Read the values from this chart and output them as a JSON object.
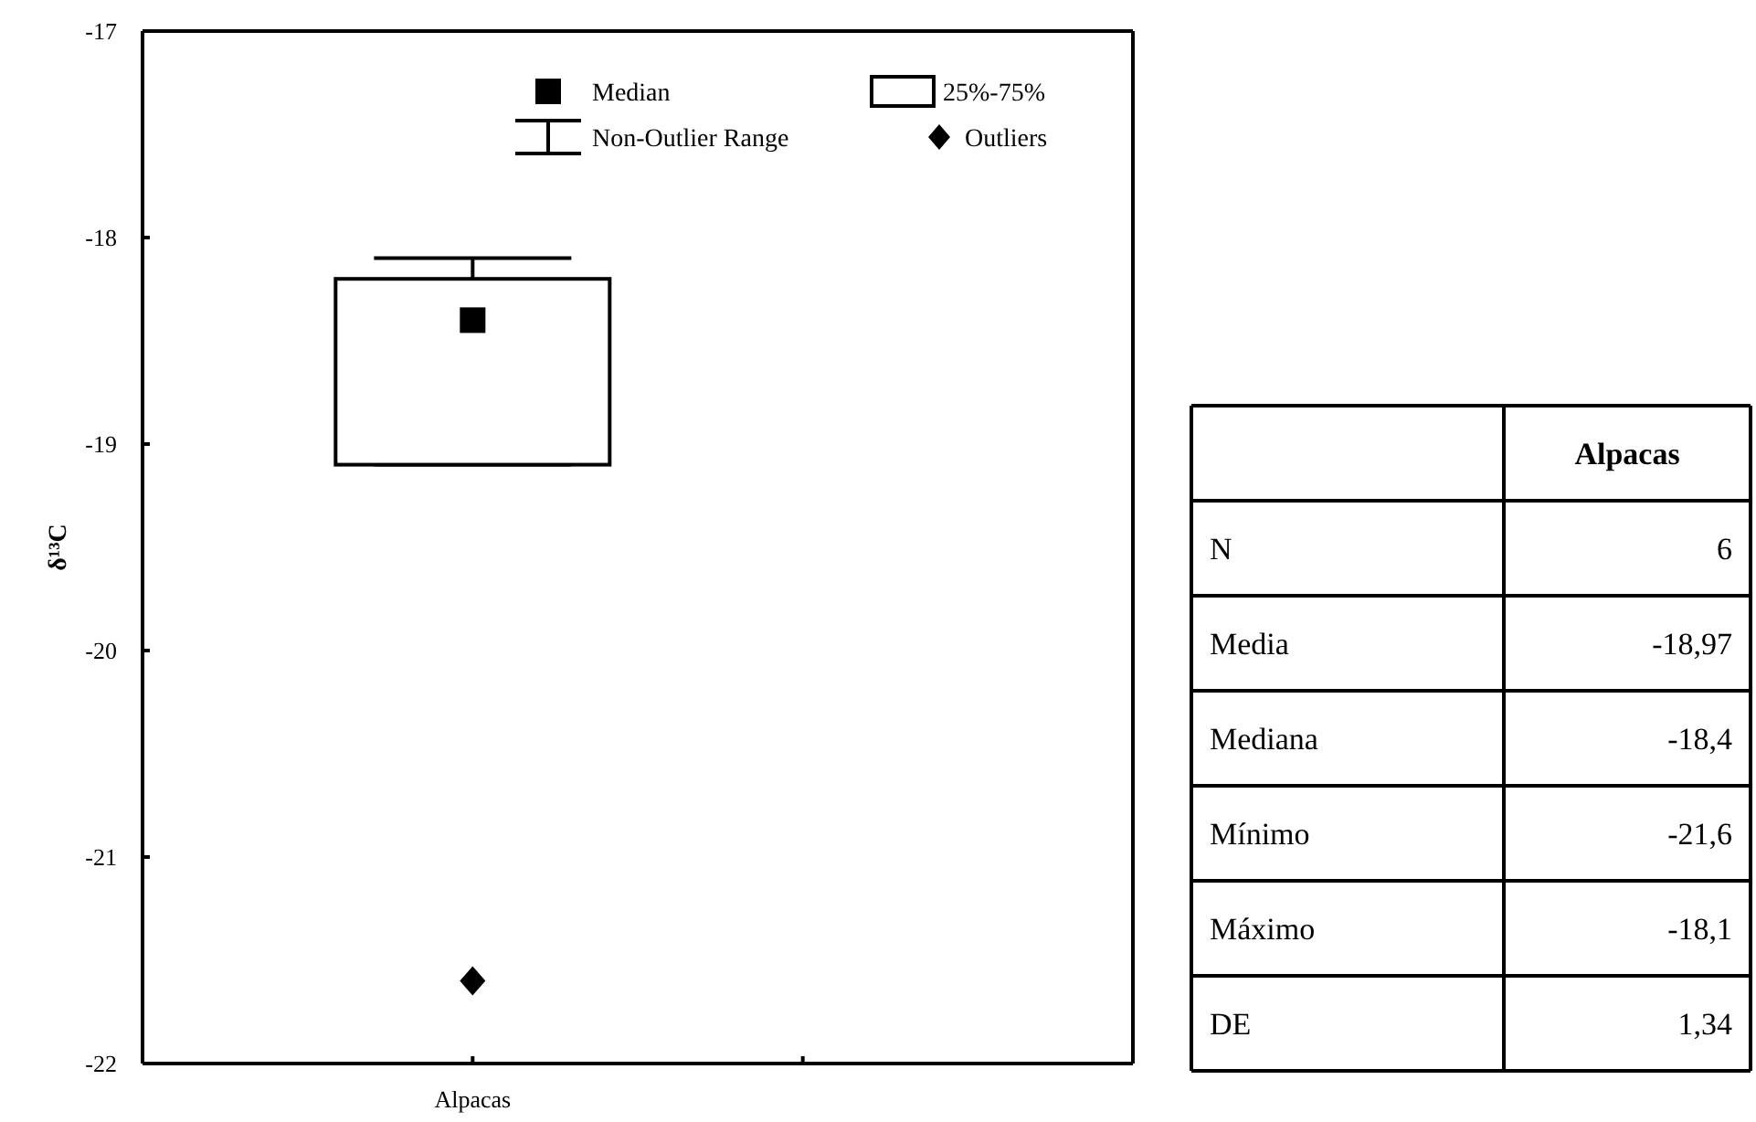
{
  "chart_data": [
    {
      "type": "box",
      "ylabel": "δ¹³C",
      "categories": [
        "Alpacas",
        null
      ],
      "boxes": [
        {
          "low": -19.1,
          "q1": -19.1,
          "median": -18.4,
          "q3": -18.2,
          "high": -18.1,
          "outliers": [
            -21.6
          ]
        },
        null
      ],
      "ylim": [
        -22,
        -17
      ],
      "yticks": [
        -22,
        -21,
        -20,
        -19,
        -18,
        -17
      ],
      "annotations": [
        "Median",
        "25%-75%",
        "Non-Outlier Range",
        "Outliers"
      ]
    },
    {
      "type": "other",
      "categories": [
        "Alpacas"
      ],
      "y_categories": [
        "N",
        "Media",
        "Mediana",
        "Mínimo",
        "Máximo",
        "DE"
      ],
      "cell_labels": [
        [
          "6"
        ],
        [
          "-18,97"
        ],
        [
          "-18,4"
        ],
        [
          "-21,6"
        ],
        [
          "-18,1"
        ],
        [
          "1,34"
        ]
      ]
    }
  ]
}
